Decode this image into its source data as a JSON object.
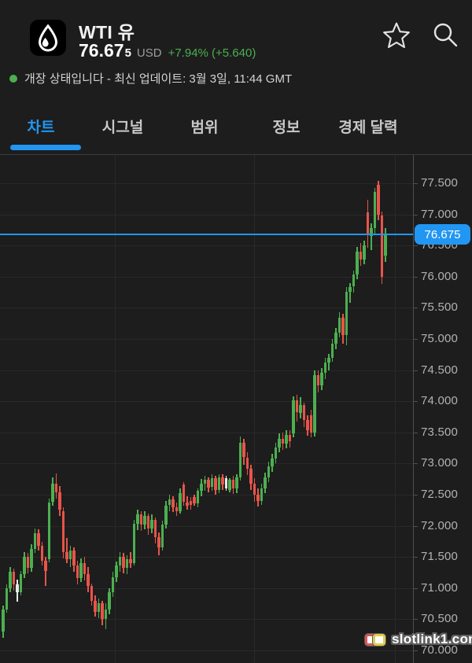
{
  "header": {
    "symbol": "WTI 유",
    "price_main": "76.67",
    "price_small": "5",
    "currency": "USD",
    "change_text": "+7.94% (+5.640)",
    "status_text": "개장 상태입니다 - 최신 업데이트: 3월 3일, 11:44 GMT"
  },
  "tabs": [
    {
      "label": "차트",
      "active": true
    },
    {
      "label": "시그널",
      "active": false
    },
    {
      "label": "범위",
      "active": false
    },
    {
      "label": "정보",
      "active": false
    },
    {
      "label": "경제 달력",
      "active": false
    }
  ],
  "price_scale": {
    "current_label": "76.675"
  },
  "watermark": {
    "text": "slotlink1.com"
  },
  "colors": {
    "accent": "#2196f3",
    "up": "#4caf50",
    "down": "#e8544a",
    "background": "#1d1d1d"
  },
  "chart_data": {
    "type": "candlestick",
    "title": "WTI 유",
    "price_unit": "USD",
    "current_price": 76.675,
    "ylim": [
      69.82,
      77.95
    ],
    "grid": true,
    "y_axis_ticks": [
      77.5,
      77.0,
      76.5,
      76.0,
      75.5,
      75.0,
      74.5,
      74.0,
      73.5,
      73.0,
      72.5,
      72.0,
      71.5,
      71.0,
      70.5,
      70.0
    ],
    "up_color": "#4caf50",
    "down_color": "#e8544a",
    "neutral_color": "#e8e8e8",
    "line_color": "#2196f3",
    "candles": [
      [
        70.3,
        70.72,
        70.2,
        70.66
      ],
      [
        70.66,
        71.06,
        70.6,
        71.0
      ],
      [
        71.0,
        71.34,
        70.94,
        71.26
      ],
      [
        71.26,
        71.32,
        70.96,
        71.06
      ],
      [
        71.06,
        71.14,
        70.78,
        70.94,
        "w"
      ],
      [
        70.94,
        71.28,
        70.88,
        71.22
      ],
      [
        71.22,
        71.58,
        71.16,
        71.5
      ],
      [
        71.5,
        71.56,
        71.24,
        71.32
      ],
      [
        71.32,
        71.7,
        71.26,
        71.63
      ],
      [
        71.63,
        71.96,
        71.56,
        71.88
      ],
      [
        71.88,
        71.94,
        71.6,
        71.68
      ],
      [
        71.68,
        71.74,
        71.36,
        71.44
      ],
      [
        71.44,
        71.5,
        71.04,
        71.28
      ],
      [
        71.46,
        72.44,
        71.42,
        72.38
      ],
      [
        72.38,
        72.78,
        72.32,
        72.68
      ],
      [
        72.68,
        72.84,
        72.44,
        72.54
      ],
      [
        72.54,
        72.64,
        72.16,
        72.26
      ],
      [
        72.24,
        72.3,
        71.48,
        71.58
      ],
      [
        71.58,
        71.8,
        71.4,
        71.46
      ],
      [
        71.46,
        71.68,
        71.34,
        71.6
      ],
      [
        71.6,
        71.66,
        71.26,
        71.36
      ],
      [
        71.36,
        71.44,
        71.06,
        71.16
      ],
      [
        71.16,
        71.48,
        71.1,
        71.4
      ],
      [
        71.4,
        71.5,
        71.12,
        71.22
      ],
      [
        71.22,
        71.34,
        70.94,
        71.03
      ],
      [
        71.03,
        71.08,
        70.72,
        70.8
      ],
      [
        70.8,
        70.88,
        70.54,
        70.62
      ],
      [
        70.62,
        70.84,
        70.52,
        70.76
      ],
      [
        70.76,
        70.8,
        70.4,
        70.5
      ],
      [
        70.5,
        70.76,
        70.34,
        70.66
      ],
      [
        70.66,
        71.0,
        70.58,
        70.93
      ],
      [
        70.93,
        71.26,
        70.86,
        71.18
      ],
      [
        71.18,
        71.43,
        71.1,
        71.36
      ],
      [
        71.36,
        71.58,
        71.26,
        71.5
      ],
      [
        71.5,
        71.56,
        71.24,
        71.33
      ],
      [
        71.33,
        71.53,
        71.22,
        71.46
      ],
      [
        71.46,
        71.58,
        71.32,
        71.4
      ],
      [
        71.4,
        72.1,
        71.36,
        72.03
      ],
      [
        72.03,
        72.26,
        71.93,
        72.18
      ],
      [
        72.18,
        72.24,
        71.92,
        72.02
      ],
      [
        72.02,
        72.23,
        71.94,
        72.16
      ],
      [
        72.16,
        72.2,
        71.86,
        71.96
      ],
      [
        71.96,
        72.18,
        71.88,
        72.1
      ],
      [
        72.1,
        72.14,
        71.72,
        71.82
      ],
      [
        71.82,
        71.9,
        71.53,
        71.66
      ],
      [
        71.66,
        72.08,
        71.6,
        72.02
      ],
      [
        72.02,
        72.4,
        71.96,
        72.33
      ],
      [
        72.33,
        72.5,
        72.23,
        72.43
      ],
      [
        72.43,
        72.48,
        72.22,
        72.3
      ],
      [
        72.3,
        72.38,
        72.16,
        72.24
      ],
      [
        72.24,
        72.6,
        72.2,
        72.53
      ],
      [
        72.66,
        72.7,
        72.32,
        72.38
      ],
      [
        72.38,
        72.48,
        72.26,
        72.32
      ],
      [
        72.4,
        72.46,
        72.26,
        72.34
      ],
      [
        72.46,
        72.5,
        72.32,
        72.36
      ],
      [
        72.36,
        72.6,
        72.3,
        72.56
      ],
      [
        72.56,
        72.75,
        72.48,
        72.68
      ],
      [
        72.68,
        72.8,
        72.56,
        72.74
      ],
      [
        72.74,
        72.78,
        72.54,
        72.62
      ],
      [
        72.62,
        72.83,
        72.56,
        72.76
      ],
      [
        72.76,
        72.8,
        72.5,
        72.58
      ],
      [
        72.58,
        72.83,
        72.52,
        72.78
      ],
      [
        72.78,
        72.83,
        72.58,
        72.66
      ],
      [
        72.6,
        72.8,
        72.56,
        72.76,
        "w"
      ],
      [
        72.58,
        72.77,
        72.54,
        72.74
      ],
      [
        72.74,
        72.8,
        72.51,
        72.6
      ],
      [
        72.6,
        72.83,
        72.53,
        72.78
      ],
      [
        72.78,
        73.43,
        72.72,
        73.33
      ],
      [
        73.33,
        73.4,
        72.98,
        73.1
      ],
      [
        73.1,
        73.18,
        72.82,
        72.92
      ],
      [
        72.92,
        72.98,
        72.58,
        72.68
      ],
      [
        72.68,
        72.76,
        72.38,
        72.5
      ],
      [
        72.5,
        72.6,
        72.31,
        72.4
      ],
      [
        72.4,
        72.68,
        72.34,
        72.6
      ],
      [
        72.6,
        72.86,
        72.52,
        72.78
      ],
      [
        72.78,
        73.03,
        72.7,
        72.95
      ],
      [
        72.95,
        73.16,
        72.86,
        73.08
      ],
      [
        73.08,
        73.33,
        73.0,
        73.26
      ],
      [
        73.26,
        73.48,
        73.18,
        73.4
      ],
      [
        73.4,
        73.5,
        73.22,
        73.32
      ],
      [
        73.32,
        73.53,
        73.25,
        73.46
      ],
      [
        73.46,
        73.53,
        73.26,
        73.36
      ],
      [
        73.48,
        74.08,
        73.42,
        74.02
      ],
      [
        74.02,
        74.1,
        73.68,
        73.82
      ],
      [
        73.82,
        74.06,
        73.72,
        73.94
      ],
      [
        73.94,
        73.98,
        73.58,
        73.7
      ],
      [
        73.7,
        73.78,
        73.44,
        73.54
      ],
      [
        73.78,
        73.86,
        73.42,
        73.5
      ],
      [
        73.5,
        74.49,
        73.44,
        74.42
      ],
      [
        74.42,
        74.5,
        74.14,
        74.26
      ],
      [
        74.26,
        74.53,
        74.18,
        74.46
      ],
      [
        74.46,
        74.7,
        74.36,
        74.62
      ],
      [
        74.62,
        74.76,
        74.5,
        74.7
      ],
      [
        74.7,
        75.0,
        74.64,
        74.93
      ],
      [
        74.93,
        75.18,
        74.84,
        75.1
      ],
      [
        75.1,
        75.43,
        75.02,
        75.34
      ],
      [
        75.34,
        75.4,
        74.92,
        75.06
      ],
      [
        75.06,
        75.83,
        74.9,
        75.76
      ],
      [
        75.76,
        75.9,
        75.58,
        75.84
      ],
      [
        75.84,
        76.1,
        75.74,
        76.03
      ],
      [
        76.03,
        76.48,
        75.96,
        76.4
      ],
      [
        76.4,
        76.54,
        76.18,
        76.28
      ],
      [
        76.28,
        76.58,
        76.2,
        76.5
      ],
      [
        77.03,
        77.23,
        76.46,
        76.66
      ],
      [
        76.66,
        76.86,
        76.42,
        76.78
      ],
      [
        76.78,
        77.42,
        76.66,
        77.36
      ],
      [
        77.48,
        77.54,
        76.9,
        77.0
      ],
      [
        76.98,
        77.04,
        75.88,
        76.0
      ],
      [
        76.34,
        76.78,
        76.24,
        76.675
      ]
    ]
  }
}
